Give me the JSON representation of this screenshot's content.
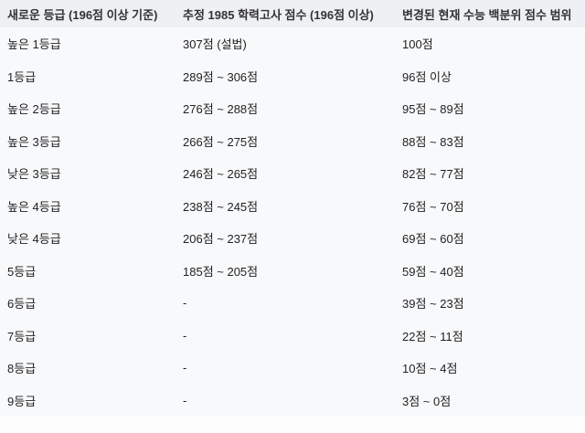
{
  "table": {
    "headers": [
      "새로운 등급 (196점 이상 기준)",
      "추정 1985 학력고사 점수 (196점 이상)",
      "변경된 현재 수능 백분위 점수 범위"
    ],
    "rows": [
      [
        "높은 1등급",
        "307점 (설법)",
        "100점"
      ],
      [
        "1등급",
        "289점 ~ 306점",
        "96점 이상"
      ],
      [
        "높은 2등급",
        "276점 ~ 288점",
        "95점 ~ 89점"
      ],
      [
        "높은 3등급",
        "266점 ~ 275점",
        "88점 ~ 83점"
      ],
      [
        "낮은 3등급",
        "246점 ~ 265점",
        "82점 ~ 77점"
      ],
      [
        "높은 4등급",
        "238점 ~ 245점",
        "76점 ~ 70점"
      ],
      [
        "낮은 4등급",
        "206점 ~ 237점",
        "69점 ~ 60점"
      ],
      [
        "5등급",
        "185점 ~ 205점",
        "59점 ~ 40점"
      ],
      [
        "6등급",
        "-",
        "39점 ~ 23점"
      ],
      [
        "7등급",
        "-",
        "22점 ~ 11점"
      ],
      [
        "8등급",
        "-",
        "10점 ~ 4점"
      ],
      [
        "9등급",
        "-",
        "3점 ~ 0점"
      ]
    ]
  }
}
